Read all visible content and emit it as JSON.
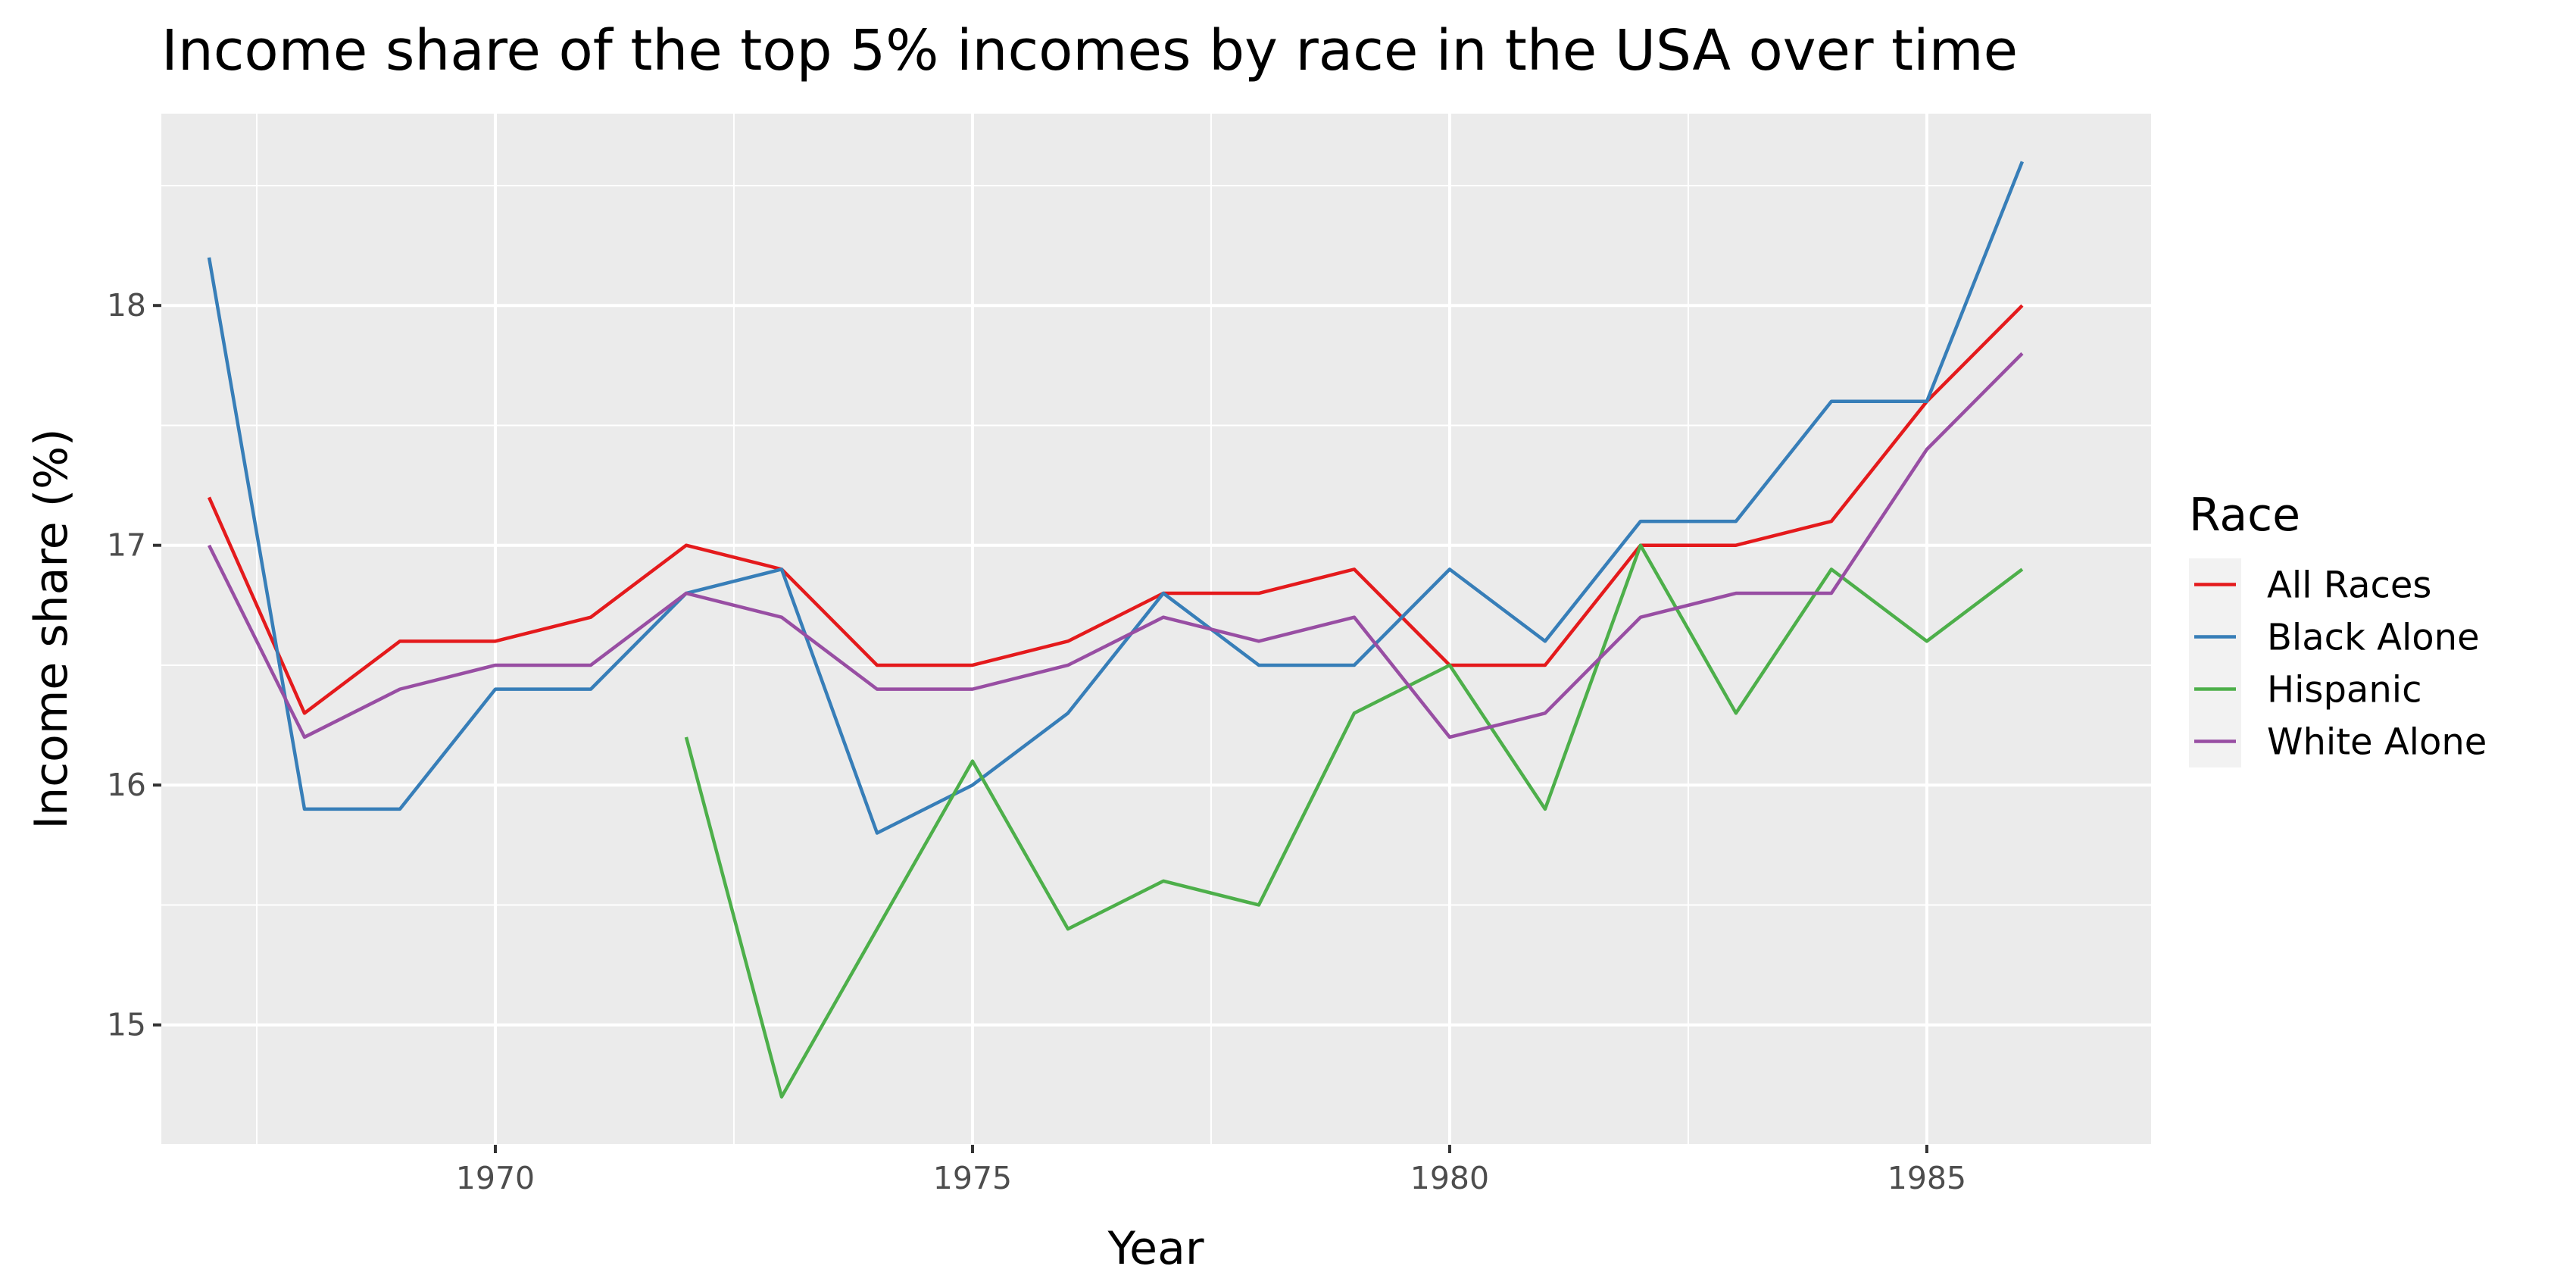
{
  "chart_data": {
    "type": "line",
    "title": "Income share of the top 5% incomes by race in the USA over time",
    "xlabel": "Year",
    "ylabel": "Income share (%)",
    "xlim": [
      1966.5,
      1987.35
    ],
    "ylim": [
      14.5,
      18.8
    ],
    "x_ticks": [
      1970,
      1975,
      1980,
      1985
    ],
    "y_ticks": [
      15,
      16,
      17,
      18
    ],
    "x_minor_ticks": [
      1967.5,
      1972.5,
      1977.5,
      1982.5,
      1987.5
    ],
    "y_minor_ticks": [
      14.5,
      15.5,
      16.5,
      17.5,
      18.5
    ],
    "grid": true,
    "background": "#ebebeb",
    "legend": {
      "title": "Race",
      "position": "right"
    },
    "x": [
      1967,
      1968,
      1969,
      1970,
      1971,
      1972,
      1973,
      1974,
      1975,
      1976,
      1977,
      1978,
      1979,
      1980,
      1981,
      1982,
      1983,
      1984,
      1985,
      1986
    ],
    "series": [
      {
        "name": "All Races",
        "color": "#e41a1c",
        "values": [
          17.2,
          16.3,
          16.6,
          16.6,
          16.7,
          17.0,
          16.9,
          16.5,
          16.5,
          16.6,
          16.8,
          16.8,
          16.9,
          16.5,
          16.5,
          17.0,
          17.0,
          17.1,
          17.6,
          18.0
        ]
      },
      {
        "name": "Black Alone",
        "color": "#377eb8",
        "values": [
          18.2,
          15.9,
          15.9,
          16.4,
          16.4,
          16.8,
          16.9,
          15.8,
          16.0,
          16.3,
          16.8,
          16.5,
          16.5,
          16.9,
          16.6,
          17.1,
          17.1,
          17.6,
          17.6,
          18.6
        ]
      },
      {
        "name": "Hispanic",
        "color": "#4daf4a",
        "values": [
          null,
          null,
          null,
          null,
          null,
          16.2,
          14.7,
          15.4,
          16.1,
          15.4,
          15.6,
          15.5,
          16.3,
          16.5,
          15.9,
          17.0,
          16.3,
          16.9,
          16.6,
          16.9
        ]
      },
      {
        "name": "White Alone",
        "color": "#984ea3",
        "values": [
          17.0,
          16.2,
          16.4,
          16.5,
          16.5,
          16.8,
          16.7,
          16.4,
          16.4,
          16.5,
          16.7,
          16.6,
          16.7,
          16.2,
          16.3,
          16.7,
          16.8,
          16.8,
          17.4,
          17.8
        ]
      }
    ]
  }
}
